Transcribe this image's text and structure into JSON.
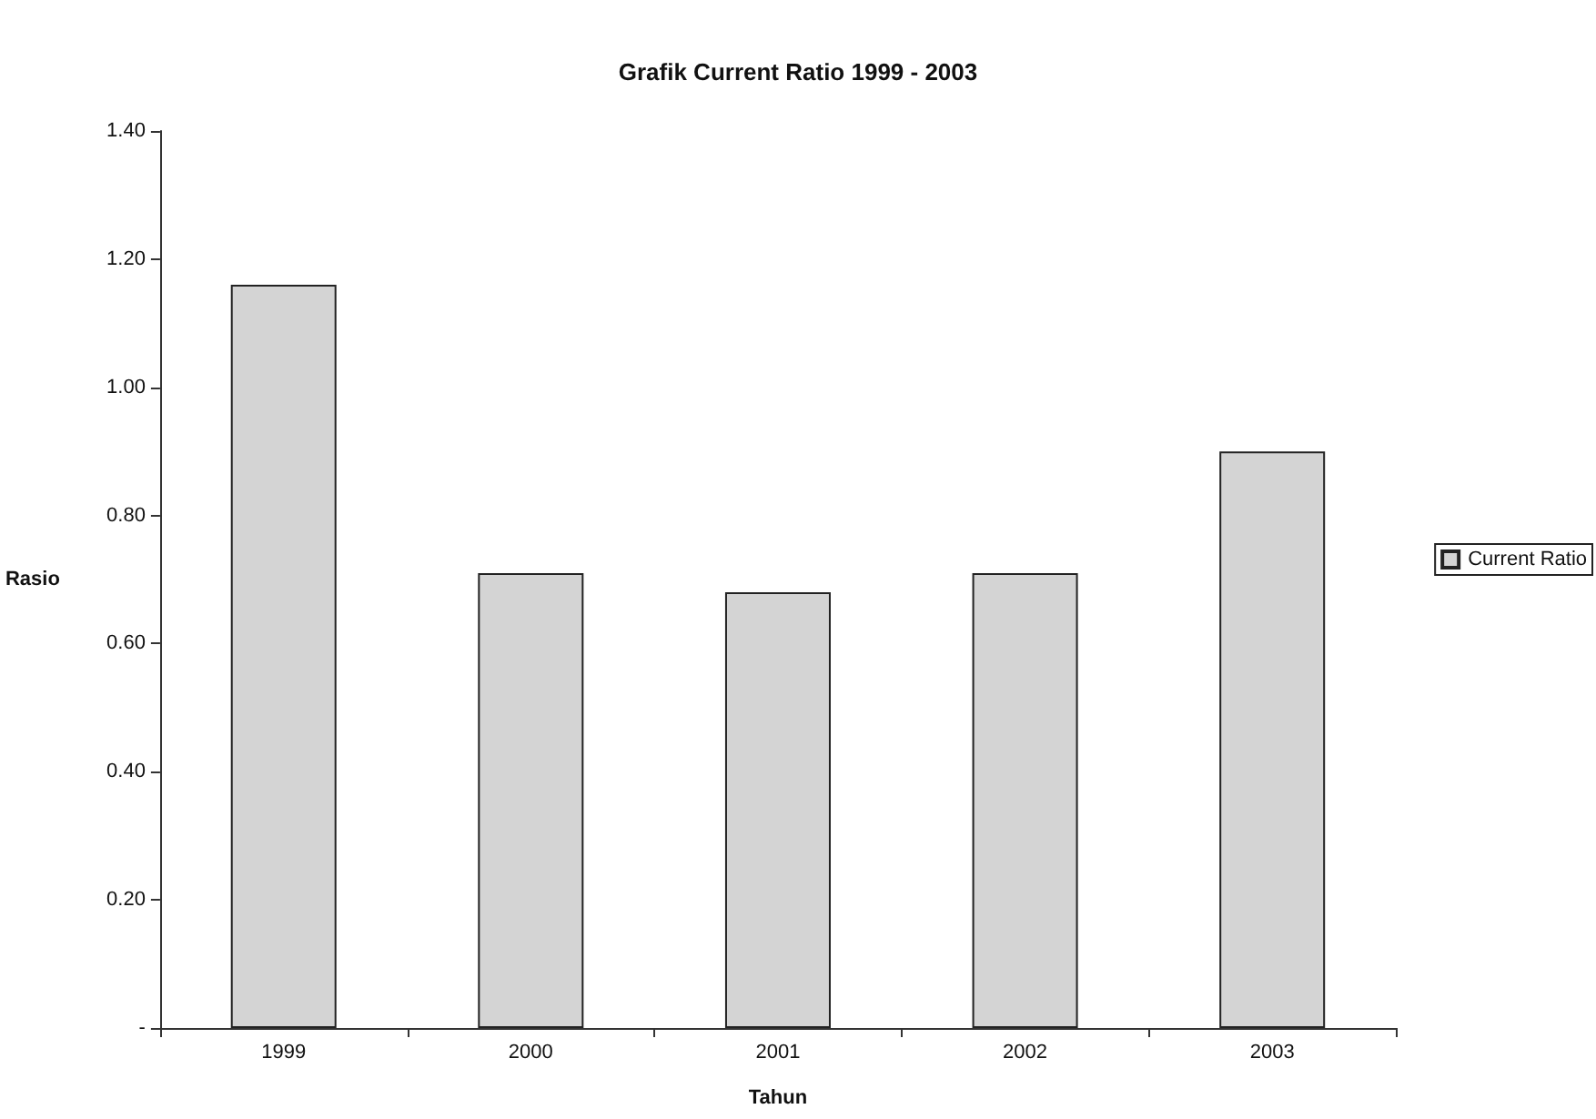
{
  "chart_data": {
    "type": "bar",
    "title": "Grafik Current Ratio 1999 - 2003",
    "xlabel": "Tahun",
    "ylabel": "Rasio",
    "categories": [
      "1999",
      "2000",
      "2001",
      "2002",
      "2003"
    ],
    "series": [
      {
        "name": "Current Ratio",
        "color": "#d4d4d4",
        "values": [
          1.16,
          0.71,
          0.68,
          0.71,
          0.9
        ]
      }
    ],
    "ylim": [
      0,
      1.4
    ],
    "yticks": [
      {
        "value": 0,
        "label": "-"
      },
      {
        "value": 0.2,
        "label": "0.20"
      },
      {
        "value": 0.4,
        "label": "0.40"
      },
      {
        "value": 0.6,
        "label": "0.60"
      },
      {
        "value": 0.8,
        "label": "0.80"
      },
      {
        "value": 1.0,
        "label": "1.00"
      },
      {
        "value": 1.2,
        "label": "1.20"
      },
      {
        "value": 1.4,
        "label": "1.40"
      }
    ],
    "grid": false,
    "legend": "right"
  }
}
